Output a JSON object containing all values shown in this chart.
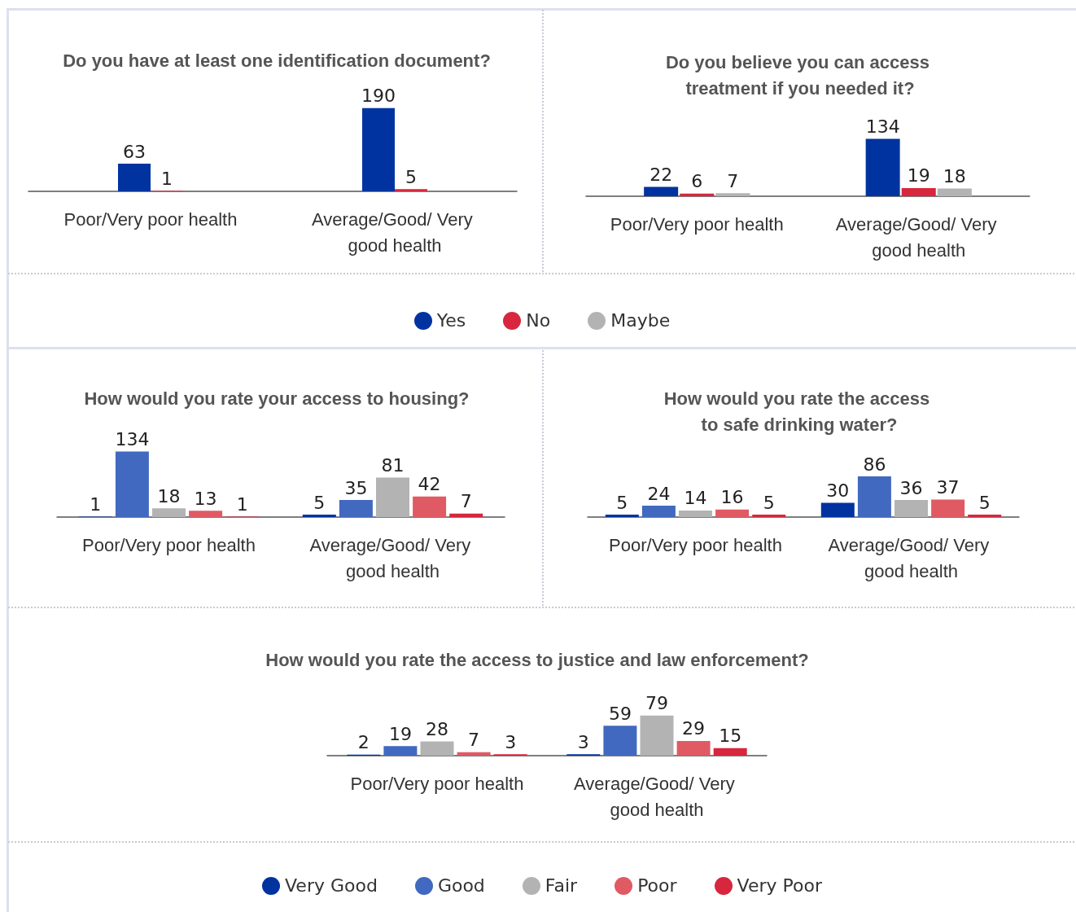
{
  "chart_data": [
    {
      "type": "bar",
      "title": "Do you have at least one identification document?",
      "categories": [
        "Poor/Very poor health",
        "Average/Good/ Very good health"
      ],
      "data_labels": true,
      "series": [
        {
          "name": "Yes",
          "color": "#0033a0",
          "values": [
            63,
            190
          ]
        },
        {
          "name": "No",
          "color": "#d7263d",
          "values": [
            1,
            5
          ]
        }
      ]
    },
    {
      "type": "bar",
      "title": "Do you believe you can access treatment if you needed it?",
      "categories": [
        "Poor/Very poor health",
        "Average/Good/ Very good health"
      ],
      "data_labels": true,
      "legend": "bottom",
      "series": [
        {
          "name": "Yes",
          "color": "#0033a0",
          "values": [
            22,
            134
          ]
        },
        {
          "name": "No",
          "color": "#d7263d",
          "values": [
            6,
            19
          ]
        },
        {
          "name": "Maybe",
          "color": "#b3b3b3",
          "values": [
            7,
            18
          ]
        }
      ]
    },
    {
      "type": "bar",
      "title": "How would you rate your access to housing?",
      "categories": [
        "Poor/Very poor health",
        "Average/Good/ Very good health"
      ],
      "data_labels": true,
      "series": [
        {
          "color": "#0033a0",
          "values": [
            1,
            5
          ]
        },
        {
          "color": "#4169c0",
          "values": [
            134,
            35
          ]
        },
        {
          "color": "#b3b3b3",
          "values": [
            18,
            81
          ]
        },
        {
          "color": "#e05a64",
          "values": [
            13,
            42
          ]
        },
        {
          "color": "#d7263d",
          "values": [
            1,
            7
          ]
        }
      ]
    },
    {
      "type": "bar",
      "title": "How would you rate the access to safe drinking water?",
      "categories": [
        "Poor/Very poor health",
        "Average/Good/ Very good health"
      ],
      "data_labels": true,
      "series": [
        {
          "color": "#0033a0",
          "values": [
            5,
            30
          ]
        },
        {
          "color": "#4169c0",
          "values": [
            24,
            86
          ]
        },
        {
          "color": "#b3b3b3",
          "values": [
            14,
            36
          ]
        },
        {
          "color": "#e05a64",
          "values": [
            16,
            37
          ]
        },
        {
          "color": "#d7263d",
          "values": [
            5,
            5
          ]
        }
      ]
    },
    {
      "type": "bar",
      "title": "How would you rate the access to justice and law enforcement?",
      "categories": [
        "Poor/Very poor health",
        "Average/Good/ Very good health"
      ],
      "data_labels": true,
      "legend": "bottom",
      "series": [
        {
          "name": "Very Good",
          "color": "#0033a0",
          "values": [
            2,
            3
          ]
        },
        {
          "name": "Good",
          "color": "#4169c0",
          "values": [
            19,
            59
          ]
        },
        {
          "name": "Fair",
          "color": "#b3b3b3",
          "values": [
            28,
            79
          ]
        },
        {
          "name": "Poor",
          "color": "#e05a64",
          "values": [
            7,
            29
          ]
        },
        {
          "name": "Very Poor",
          "color": "#d7263d",
          "values": [
            3,
            15
          ]
        }
      ]
    }
  ]
}
